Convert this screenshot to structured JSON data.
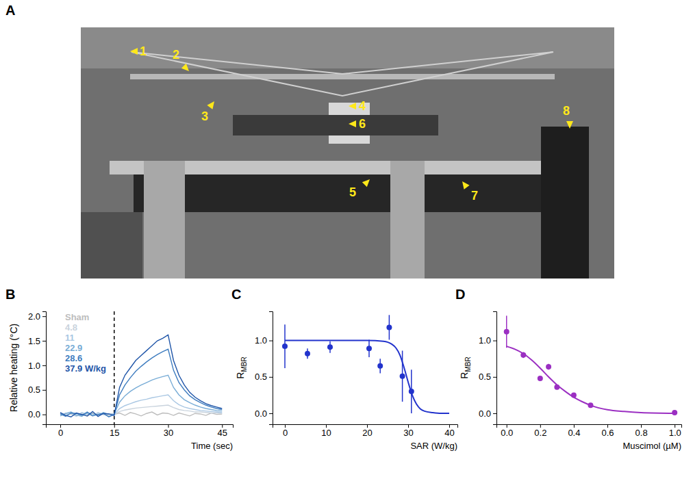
{
  "photo": {
    "panel": "A",
    "annotations": [
      "1",
      "2",
      "3",
      "4",
      "5",
      "6",
      "7",
      "8"
    ]
  },
  "chart_data": [
    {
      "panel": "B",
      "type": "line",
      "xlabel": "Time (sec)",
      "ylabel": "Relative heating (°C)",
      "x": [
        0,
        1.5,
        3,
        4.5,
        6,
        7.5,
        9,
        10.5,
        12,
        13.5,
        15,
        16.5,
        18,
        19.5,
        21,
        22.5,
        24,
        25.5,
        27,
        28.5,
        30,
        31.5,
        33,
        34.5,
        36,
        37.5,
        39,
        40.5,
        42,
        43.5,
        45
      ],
      "series": [
        {
          "name": "Sham",
          "color": "#bdbdbd",
          "values": [
            0.02,
            -0.03,
            0.04,
            -0.02,
            0.01,
            -0.04,
            0.03,
            -0.01,
            0.02,
            -0.03,
            0.0,
            0.03,
            -0.02,
            0.04,
            0.01,
            -0.03,
            0.02,
            0.05,
            -0.01,
            0.03,
            0.02,
            -0.02,
            0.03,
            0.0,
            -0.03,
            0.02,
            0.01,
            -0.02,
            0.03,
            0.0,
            0.01
          ]
        },
        {
          "name": "4.8",
          "color": "#c9d3dd",
          "values": [
            -0.02,
            0.03,
            0.0,
            -0.04,
            0.02,
            0.01,
            -0.03,
            0.04,
            -0.01,
            0.02,
            0.0,
            0.06,
            0.09,
            0.11,
            0.13,
            0.14,
            0.15,
            0.16,
            0.17,
            0.18,
            0.19,
            0.14,
            0.1,
            0.08,
            0.07,
            0.05,
            0.05,
            0.04,
            0.03,
            0.03,
            0.02
          ]
        },
        {
          "name": "11",
          "color": "#a9c7e3",
          "values": [
            0.03,
            -0.01,
            0.02,
            -0.03,
            0.04,
            0.0,
            -0.02,
            0.03,
            0.01,
            -0.04,
            0.0,
            0.12,
            0.18,
            0.22,
            0.26,
            0.29,
            0.31,
            0.34,
            0.36,
            0.38,
            0.4,
            0.28,
            0.2,
            0.15,
            0.12,
            0.1,
            0.08,
            0.07,
            0.06,
            0.05,
            0.04
          ]
        },
        {
          "name": "22.9",
          "color": "#78acd6",
          "values": [
            -0.03,
            0.02,
            0.05,
            -0.01,
            -0.04,
            0.03,
            0.01,
            -0.02,
            0.04,
            0.0,
            0.01,
            0.25,
            0.38,
            0.47,
            0.54,
            0.6,
            0.65,
            0.7,
            0.74,
            0.77,
            0.8,
            0.55,
            0.4,
            0.3,
            0.24,
            0.19,
            0.15,
            0.12,
            0.1,
            0.08,
            0.07
          ]
        },
        {
          "name": "28.6",
          "color": "#3d7cbf",
          "values": [
            0.01,
            -0.04,
            0.03,
            0.02,
            -0.02,
            0.05,
            -0.03,
            0.0,
            0.02,
            -0.05,
            0.0,
            0.4,
            0.6,
            0.75,
            0.88,
            0.98,
            1.07,
            1.15,
            1.22,
            1.28,
            1.33,
            0.9,
            0.65,
            0.5,
            0.38,
            0.3,
            0.24,
            0.19,
            0.15,
            0.12,
            0.1
          ]
        },
        {
          "name": "37.9 W/kg",
          "color": "#1f55a8",
          "values": [
            0.04,
            -0.02,
            -0.05,
            0.03,
            0.0,
            -0.03,
            0.06,
            -0.04,
            0.02,
            0.01,
            -0.02,
            0.55,
            0.8,
            0.95,
            1.1,
            1.2,
            1.3,
            1.4,
            1.5,
            1.55,
            1.62,
            1.1,
            0.8,
            0.6,
            0.45,
            0.35,
            0.28,
            0.22,
            0.18,
            0.15,
            0.12
          ]
        }
      ],
      "vline_x": 15,
      "legend": "top-left",
      "xlim": [
        -4,
        48
      ],
      "ylim": [
        -0.2,
        2.1
      ],
      "xticks": [
        0,
        15,
        30,
        45
      ],
      "yticks": [
        {
          "value": 0,
          "label": "0.0"
        },
        {
          "value": 0.5,
          "label": "0.5"
        },
        {
          "value": 1,
          "label": "1.0"
        },
        {
          "value": 1.5,
          "label": "1.5"
        },
        {
          "value": 2,
          "label": "2.0"
        }
      ]
    },
    {
      "panel": "C",
      "type": "scatter",
      "xlabel": "SAR (W/kg)",
      "ylabel": "R",
      "ylabel_subscript": "MBR",
      "color": "#2233cc",
      "x": [
        0,
        5.5,
        11,
        20.5,
        23.2,
        25.4,
        28.6,
        30.8
      ],
      "values": [
        0.92,
        0.82,
        0.91,
        0.89,
        0.65,
        1.18,
        0.51,
        0.3
      ],
      "errors": [
        0.3,
        0.07,
        0.08,
        0.12,
        0.1,
        0.17,
        0.35,
        0.3
      ],
      "fit": {
        "x": [
          0,
          5,
          10,
          15,
          20,
          24,
          26,
          27,
          28,
          29,
          30,
          31,
          32,
          33,
          34,
          36,
          38,
          40
        ],
        "values": [
          1,
          1,
          1,
          1,
          1,
          0.99,
          0.95,
          0.9,
          0.8,
          0.63,
          0.43,
          0.25,
          0.13,
          0.06,
          0.03,
          0.01,
          0,
          0
        ]
      },
      "xlim": [
        -3,
        42
      ],
      "ylim": [
        -0.15,
        1.4
      ],
      "xticks": [
        0,
        10,
        20,
        30,
        40
      ],
      "yticks": [
        {
          "value": 0,
          "label": "0.0"
        },
        {
          "value": 0.5,
          "label": "0.5"
        },
        {
          "value": 1,
          "label": "1.0"
        }
      ]
    },
    {
      "panel": "D",
      "type": "scatter",
      "xlabel": "Muscimol (µM)",
      "ylabel": "R",
      "ylabel_subscript": "MBR",
      "color": "#9b2fc2",
      "x": [
        0,
        0.1,
        0.2,
        0.25,
        0.3,
        0.4,
        0.5,
        1.0
      ],
      "values": [
        1.12,
        0.8,
        0.48,
        0.64,
        0.36,
        0.25,
        0.11,
        0.01
      ],
      "errors": [
        0.22,
        0.04,
        0.02,
        0.04,
        0.02,
        0.02,
        0.01,
        0.01
      ],
      "fit": {
        "x": [
          0,
          0.05,
          0.1,
          0.15,
          0.2,
          0.25,
          0.3,
          0.35,
          0.4,
          0.45,
          0.5,
          0.6,
          0.7,
          0.8,
          1.0
        ],
        "values": [
          0.92,
          0.88,
          0.82,
          0.73,
          0.62,
          0.5,
          0.39,
          0.3,
          0.22,
          0.16,
          0.11,
          0.05,
          0.025,
          0.01,
          0
        ]
      },
      "xlim": [
        -0.06,
        1.04
      ],
      "ylim": [
        -0.15,
        1.4
      ],
      "xticks": [
        {
          "value": 0,
          "label": "0.0"
        },
        {
          "value": 0.2,
          "label": "0.2"
        },
        {
          "value": 0.4,
          "label": "0.4"
        },
        {
          "value": 0.6,
          "label": "0.6"
        },
        {
          "value": 0.8,
          "label": "0.8"
        },
        {
          "value": 1,
          "label": "1.0"
        }
      ],
      "yticks": [
        {
          "value": 0,
          "label": "0.0"
        },
        {
          "value": 0.5,
          "label": "0.5"
        },
        {
          "value": 1,
          "label": "1.0"
        }
      ]
    }
  ]
}
